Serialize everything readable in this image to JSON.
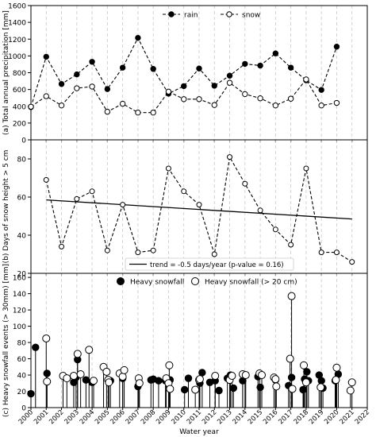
{
  "chart_data": [
    {
      "type": "line",
      "ylabel": "(a) Total annual precipitation [mm]",
      "xlim": [
        2000,
        2022
      ],
      "ylim": [
        0,
        1600
      ],
      "yticks": [
        0,
        200,
        400,
        600,
        800,
        1000,
        1200,
        1400,
        1600
      ],
      "grid": "x",
      "legend": "top-center",
      "series": [
        {
          "name": "rain",
          "marker": "filled-circle",
          "style": "dashed",
          "x": [
            2000,
            2001,
            2002,
            2003,
            2004,
            2005,
            2006,
            2007,
            2008,
            2009,
            2010,
            2011,
            2012,
            2013,
            2014,
            2015,
            2016,
            2017,
            2018,
            2019,
            2020
          ],
          "y": [
            390,
            990,
            665,
            780,
            930,
            605,
            860,
            1215,
            845,
            550,
            640,
            850,
            645,
            765,
            905,
            885,
            1030,
            860,
            710,
            595,
            1110
          ]
        },
        {
          "name": "snow",
          "marker": "open-circle",
          "style": "dashed",
          "x": [
            2000,
            2001,
            2002,
            2003,
            2004,
            2005,
            2006,
            2007,
            2008,
            2009,
            2010,
            2011,
            2012,
            2013,
            2014,
            2015,
            2016,
            2017,
            2018,
            2019,
            2020
          ],
          "y": [
            395,
            520,
            410,
            615,
            635,
            335,
            430,
            325,
            325,
            575,
            485,
            485,
            415,
            680,
            545,
            495,
            410,
            490,
            720,
            410,
            440
          ]
        }
      ]
    },
    {
      "type": "line",
      "ylabel": "(b) Days of snow height > 5 cm",
      "xlim": [
        2000,
        2022
      ],
      "ylim": [
        20,
        90
      ],
      "yticks": [
        20,
        40,
        60,
        80
      ],
      "grid": "x",
      "legend": "bottom-center",
      "series": [
        {
          "marker": "open-circle",
          "style": "dashed",
          "x": [
            2001,
            2002,
            2003,
            2004,
            2005,
            2006,
            2007,
            2008,
            2009,
            2010,
            2011,
            2012,
            2013,
            2014,
            2015,
            2016,
            2017,
            2018,
            2019,
            2020,
            2021
          ],
          "y": [
            69,
            34,
            59,
            63,
            32,
            56,
            31,
            32,
            75,
            63,
            56,
            30,
            81,
            67,
            53,
            43,
            35,
            75,
            31,
            31,
            26
          ]
        }
      ],
      "trend": {
        "name": "trend = -0.5 days/year (p-value = 0.16)",
        "x": [
          2001,
          2021
        ],
        "y": [
          58.5,
          48.5
        ]
      }
    },
    {
      "type": "scatter",
      "ylabel": "(c) Heavy snowfall events (> 30mm) [mm]",
      "xlabel": "Water year",
      "xlim": [
        2000,
        2022
      ],
      "ylim": [
        0,
        165
      ],
      "xticks": [
        2000,
        2001,
        2002,
        2003,
        2004,
        2005,
        2006,
        2007,
        2008,
        2009,
        2010,
        2011,
        2012,
        2013,
        2014,
        2015,
        2016,
        2017,
        2018,
        2019,
        2020,
        2021,
        2022
      ],
      "yticks": [
        0,
        20,
        40,
        60,
        80,
        100,
        120,
        140,
        160
      ],
      "grid": "x",
      "legend": "top-center",
      "series": [
        {
          "name": "Heavy snowfall",
          "marker": "filled-circle",
          "x": [
            2000.0,
            2000.3,
            2001.05,
            2002.8,
            2002.95,
            2003.05,
            2003.6,
            2004.0,
            2005.2,
            2006.0,
            2007.0,
            2007.85,
            2008.0,
            2008.35,
            2008.8,
            2009.1,
            2010.05,
            2010.3,
            2011.05,
            2011.2,
            2011.7,
            2012.05,
            2012.3,
            2012.85,
            2013.05,
            2013.25,
            2013.85,
            2014.0,
            2014.85,
            2015.0,
            2015.1,
            2016.0,
            2016.85,
            2017.05,
            2017.8,
            2017.9,
            2018.05,
            2018.15,
            2018.85,
            2019.0,
            2019.1,
            2019.9,
            2020.1
          ],
          "y": [
            17,
            74,
            42,
            31,
            37,
            59,
            34,
            31,
            33,
            36,
            26,
            34,
            35,
            33,
            33,
            34,
            22,
            36,
            30,
            43,
            31,
            33,
            21,
            36,
            40,
            24,
            33,
            40,
            38,
            25,
            40,
            34,
            27,
            37,
            22,
            35,
            44,
            33,
            40,
            33,
            24,
            33,
            41
          ]
        },
        {
          "name": "Heavy snowfall (> 20 cm)",
          "marker": "open-circle",
          "x": [
            2001.0,
            2001.05,
            2002.1,
            2002.35,
            2002.8,
            2003.05,
            2003.25,
            2003.8,
            2004.1,
            2004.75,
            2004.95,
            2005.05,
            2005.1,
            2005.8,
            2006.0,
            2006.1,
            2007.05,
            2007.1,
            2008.85,
            2009.0,
            2009.1,
            2009.05,
            2010.75,
            2011.0,
            2011.05,
            2012.05,
            2013.0,
            2013.15,
            2013.85,
            2014.05,
            2014.95,
            2015.1,
            2015.9,
            2016.0,
            2016.05,
            2016.95,
            2017.05,
            2017.1,
            2017.85,
            2018.0,
            2018.95,
            2019.95,
            2020.0,
            2020.9,
            2021.0
          ],
          "y": [
            85,
            32,
            39,
            36,
            39,
            66,
            41,
            71,
            33,
            50,
            44,
            34,
            31,
            42,
            38,
            46,
            36,
            30,
            36,
            30,
            23,
            52,
            22,
            34,
            35,
            39,
            34,
            39,
            41,
            40,
            42,
            40,
            37,
            35,
            26,
            60,
            137,
            23,
            52,
            31,
            25,
            34,
            49,
            21,
            31
          ]
        }
      ]
    }
  ]
}
